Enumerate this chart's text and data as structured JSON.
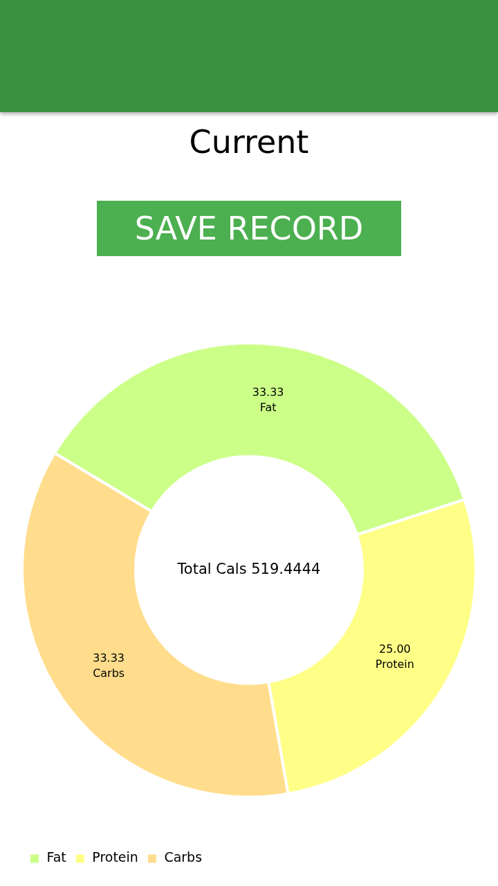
{
  "chart_data": {
    "type": "donut",
    "title": "Current",
    "categories": [
      "Fat",
      "Protein",
      "Carbs"
    ],
    "values": [
      33.33,
      25.0,
      33.33
    ],
    "value_labels": [
      "33.33",
      "25.00",
      "33.33"
    ],
    "colors": [
      "#ccff88",
      "#ffff88",
      "#ffdd8c"
    ],
    "legend": "bottom left",
    "annotations": [
      "SAVE RECORD",
      "Total Cals 519.4444"
    ]
  }
}
